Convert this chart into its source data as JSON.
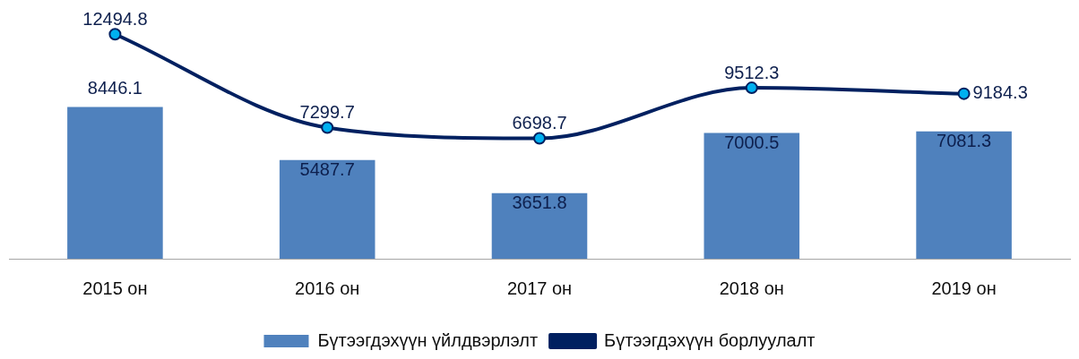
{
  "chart_data": {
    "type": "bar",
    "categories": [
      "2015 он",
      "2016 он",
      "2017 он",
      "2018 он",
      "2019 он"
    ],
    "series": [
      {
        "name": "Бүтээгдэхүүн үйлдвэрлэлт",
        "color": "#4f81bd",
        "values": [
          8446.1,
          5487.7,
          3651.8,
          7000.5,
          7081.3
        ]
      },
      {
        "name": "Бүтээгдэхүүн борлуулалт",
        "type": "line",
        "color": "#002060",
        "values": [
          12494.8,
          7299.7,
          6698.7,
          9512.3,
          9184.3
        ]
      }
    ],
    "data_labels": true,
    "legend": "bottom",
    "marker": "circle",
    "line_style": "solid"
  }
}
